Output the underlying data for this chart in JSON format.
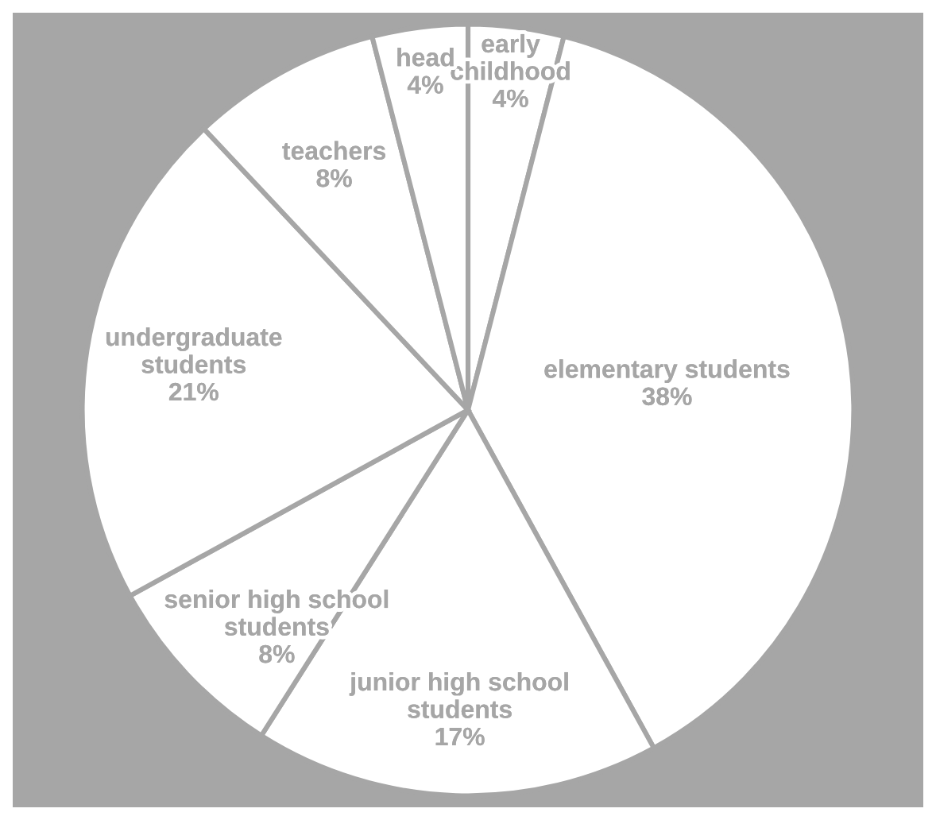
{
  "chart_data": {
    "type": "pie",
    "categories": [
      "early\nchildhood",
      "elementary students",
      "junior high school\nstudents",
      "senior high school\nstudents",
      "undergraduate\nstudents",
      "teachers",
      "head"
    ],
    "values": [
      4,
      38,
      17,
      8,
      21,
      8,
      4
    ],
    "colors": [
      "#ffffff",
      "#ffffff",
      "#ffffff",
      "#ffffff",
      "#ffffff",
      "#ffffff",
      "#ffffff"
    ],
    "value_labels": [
      "4%",
      "38%",
      "17%",
      "8%",
      "21%",
      "8%",
      "4%"
    ]
  }
}
